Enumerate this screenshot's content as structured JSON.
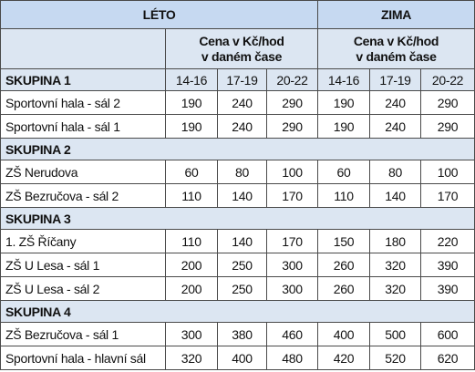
{
  "header": {
    "summer": "LÉTO",
    "winter": "ZIMA",
    "price_label": [
      "Cena v Kč/hod",
      "v daném čase"
    ],
    "time_slots": [
      "14-16",
      "17-19",
      "20-22"
    ]
  },
  "groups": [
    {
      "name": "SKUPINA 1",
      "rows": [
        {
          "name": "Sportovní hala - sál 2",
          "summer": [
            190,
            240,
            290
          ],
          "winter": [
            190,
            240,
            290
          ]
        },
        {
          "name": "Sportovní hala - sál 1",
          "summer": [
            190,
            240,
            290
          ],
          "winter": [
            190,
            240,
            290
          ]
        }
      ]
    },
    {
      "name": "SKUPINA 2",
      "rows": [
        {
          "name": "ZŠ Nerudova",
          "summer": [
            60,
            80,
            100
          ],
          "winter": [
            60,
            80,
            100
          ]
        },
        {
          "name": "ZŠ Bezručova - sál 2",
          "summer": [
            110,
            140,
            170
          ],
          "winter": [
            110,
            140,
            170
          ]
        }
      ]
    },
    {
      "name": "SKUPINA 3",
      "rows": [
        {
          "name": "1. ZŠ Říčany",
          "summer": [
            110,
            140,
            170
          ],
          "winter": [
            150,
            180,
            220
          ]
        },
        {
          "name": "ZŠ U Lesa - sál 1",
          "summer": [
            200,
            250,
            300
          ],
          "winter": [
            260,
            320,
            390
          ]
        },
        {
          "name": "ZŠ U Lesa - sál 2",
          "summer": [
            200,
            250,
            300
          ],
          "winter": [
            260,
            320,
            390
          ]
        }
      ]
    },
    {
      "name": "SKUPINA 4",
      "rows": [
        {
          "name": "ZŠ Bezručova - sál 1",
          "summer": [
            300,
            380,
            460
          ],
          "winter": [
            400,
            500,
            600
          ]
        },
        {
          "name": "Sportovní hala - hlavní sál",
          "summer": [
            320,
            400,
            480
          ],
          "winter": [
            420,
            520,
            620
          ]
        }
      ]
    }
  ]
}
